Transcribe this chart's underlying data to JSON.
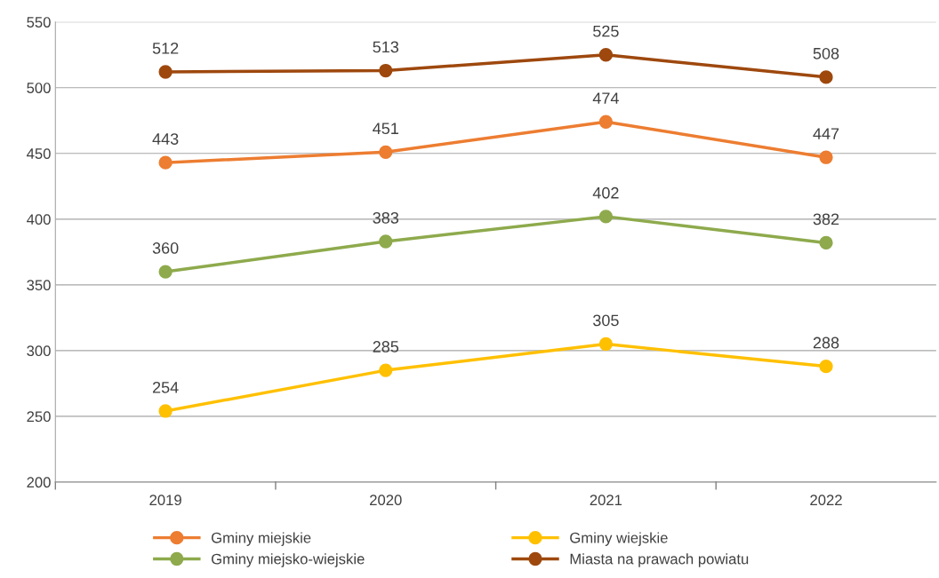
{
  "chart_data": {
    "type": "line",
    "categories": [
      "2019",
      "2020",
      "2021",
      "2022"
    ],
    "series": [
      {
        "name": "Gminy miejskie",
        "color": "#ed7d31",
        "values": [
          443,
          451,
          474,
          447
        ]
      },
      {
        "name": "Gminy wiejskie",
        "color": "#ffc000",
        "values": [
          254,
          285,
          305,
          288
        ]
      },
      {
        "name": "Gminy miejsko-wiejskie",
        "color": "#8eaa4c",
        "values": [
          360,
          383,
          402,
          382
        ]
      },
      {
        "name": "Miasta na prawach powiatu",
        "color": "#9e480e",
        "values": [
          512,
          513,
          525,
          508
        ]
      }
    ],
    "ylim": [
      200,
      550
    ],
    "yticks": [
      200,
      250,
      300,
      350,
      400,
      450,
      500,
      550
    ],
    "grid": "y",
    "legend": "bottom",
    "marker": "circle",
    "line_style": "solid",
    "data_labels": true
  }
}
